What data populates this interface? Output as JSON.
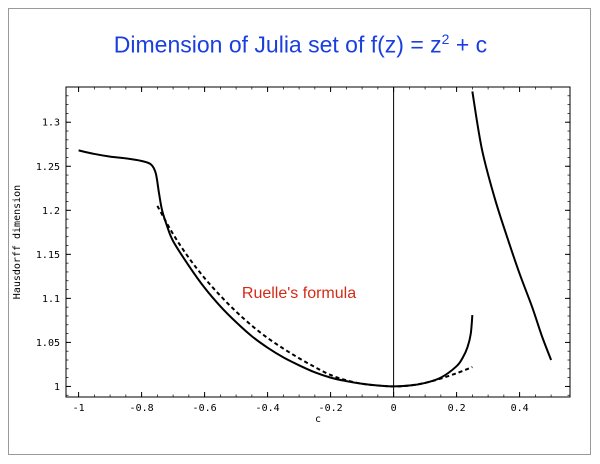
{
  "title": {
    "prefix": "Dimension of Julia set of  f(z) = z",
    "superscript": "2",
    "suffix": " + c"
  },
  "chart_data": {
    "type": "line",
    "title": "Dimension of Julia set of  f(z) = z² + c",
    "xlabel": "c",
    "ylabel": "Hausdorff dimension",
    "xlim": [
      -1.04,
      0.56
    ],
    "ylim": [
      0.988,
      1.34
    ],
    "xticks": [
      -1,
      -0.8,
      -0.6,
      -0.4,
      -0.2,
      0,
      0.2,
      0.4
    ],
    "xtick_labels": [
      "-1",
      "-0.8",
      "-0.6",
      "-0.4",
      "-0.2",
      "0",
      "0.2",
      "0.4"
    ],
    "yticks": [
      1,
      1.05,
      1.1,
      1.15,
      1.2,
      1.25,
      1.3
    ],
    "ytick_labels": [
      "1",
      "1.05",
      "1.1",
      "1.15",
      "1.2",
      "1.25",
      "1.3"
    ],
    "grid": false,
    "annotations": [
      {
        "text": "Ruelle's formula",
        "x": -0.5,
        "y": 1.09
      }
    ],
    "series": [
      {
        "style": "solid",
        "x": [
          -1.0,
          -0.95,
          -0.9,
          -0.85,
          -0.8,
          -0.77,
          -0.755,
          -0.745,
          -0.735,
          -0.72,
          -0.7,
          -0.65,
          -0.6,
          -0.55,
          -0.5,
          -0.45,
          -0.4,
          -0.35,
          -0.3,
          -0.25,
          -0.2,
          -0.15,
          -0.1,
          -0.05,
          0.0,
          0.05,
          0.1,
          0.15,
          0.2,
          0.22,
          0.235,
          0.245,
          0.25
        ],
        "y": [
          1.268,
          1.264,
          1.261,
          1.259,
          1.256,
          1.252,
          1.242,
          1.22,
          1.2,
          1.183,
          1.165,
          1.137,
          1.112,
          1.091,
          1.073,
          1.057,
          1.044,
          1.033,
          1.024,
          1.016,
          1.01,
          1.006,
          1.003,
          1.001,
          1.0,
          1.001,
          1.004,
          1.01,
          1.023,
          1.033,
          1.045,
          1.06,
          1.081
        ]
      },
      {
        "style": "solid",
        "x": [
          0.25,
          0.28,
          0.32,
          0.36,
          0.4,
          0.44,
          0.47,
          0.5
        ],
        "y": [
          1.335,
          1.27,
          1.215,
          1.17,
          1.128,
          1.09,
          1.058,
          1.03
        ]
      },
      {
        "style": "dashed",
        "name": "Ruelle's formula",
        "x": [
          -0.75,
          -0.7,
          -0.65,
          -0.6,
          -0.55,
          -0.5,
          -0.45,
          -0.4,
          -0.35,
          -0.3,
          -0.25,
          -0.2,
          -0.15,
          -0.1,
          -0.05,
          0.0,
          0.05,
          0.1,
          0.15,
          0.2,
          0.25
        ],
        "y": [
          1.205,
          1.173,
          1.146,
          1.123,
          1.103,
          1.085,
          1.069,
          1.055,
          1.043,
          1.032,
          1.022,
          1.013,
          1.007,
          1.003,
          1.001,
          1.0,
          1.001,
          1.004,
          1.009,
          1.015,
          1.022
        ]
      }
    ]
  }
}
